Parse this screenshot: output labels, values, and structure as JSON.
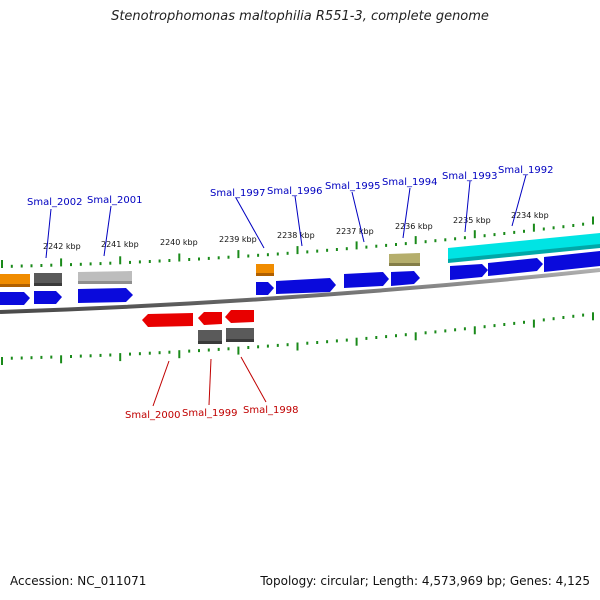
{
  "title": "Stenotrophomonas maltophilia R551-3, complete genome",
  "footer": {
    "accession": "Accession: NC_011071",
    "summary": "Topology: circular; Length: 4,573,969 bp; Genes: 4,125"
  },
  "colors": {
    "plus_gene": "#0a0adc",
    "minus_gene": "#e80000",
    "orange_feature": "#f08c00",
    "dark_grey_feature": "#5a5a5a",
    "light_grey_feature": "#bdbdbd",
    "khaki_feature": "#b5ae6c",
    "cyan_feature": "#00e4e4",
    "tick_color": "#1a8a1a",
    "backbone": "#7a7a7a",
    "plus_label": "#0000c0",
    "minus_label": "#c00000"
  },
  "scale_labels": [
    "2242 kbp",
    "2241 kbp",
    "2240 kbp",
    "2239 kbp",
    "2238 kbp",
    "2237 kbp",
    "2236 kbp",
    "2235 kbp",
    "2234 kbp"
  ],
  "plus_gene_labels": [
    "Smal_2002",
    "Smal_2001",
    "Smal_1997",
    "Smal_1996",
    "Smal_1995",
    "Smal_1994",
    "Smal_1993",
    "Smal_1992"
  ],
  "minus_gene_labels": [
    "Smal_2000",
    "Smal_1999",
    "Smal_1998"
  ]
}
